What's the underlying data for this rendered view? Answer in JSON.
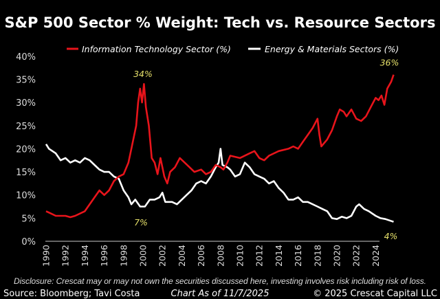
{
  "chart_data": {
    "type": "line",
    "title": "S&P 500 Sector % Weight: Tech vs. Resource Sectors",
    "xlabel": "",
    "ylabel": "",
    "xlim": [
      1990,
      2025.9
    ],
    "ylim": [
      0,
      40
    ],
    "y_ticks": [
      "0%",
      "5%",
      "10%",
      "15%",
      "20%",
      "25%",
      "30%",
      "35%",
      "40%"
    ],
    "y_tick_values": [
      0,
      5,
      10,
      15,
      20,
      25,
      30,
      35,
      40
    ],
    "x_ticks": [
      "1990",
      "1992",
      "1994",
      "1996",
      "1998",
      "2000",
      "2002",
      "2004",
      "2006",
      "2008",
      "2010",
      "2012",
      "2014",
      "2016",
      "2018",
      "2020",
      "2022",
      "2024"
    ],
    "grid": false,
    "legend_position": "top",
    "background": "#000000",
    "series": [
      {
        "name": "Information Technology Sector (%)",
        "color": "#e8141b",
        "x": [
          1990,
          1990.5,
          1991,
          1992,
          1992.5,
          1993,
          1994,
          1994.5,
          1995,
          1995.5,
          1996,
          1996.5,
          1997,
          1997.5,
          1998,
          1998.5,
          1998.8,
          1999,
          1999.3,
          1999.5,
          1999.7,
          1999.9,
          2000.1,
          2000.3,
          2000.6,
          2000.9,
          2001.2,
          2001.5,
          2001.8,
          2002.2,
          2002.5,
          2002.8,
          2003.3,
          2003.8,
          2004.3,
          2004.8,
          2005.3,
          2006,
          2006.5,
          2007,
          2007.5,
          2008,
          2008.3,
          2008.7,
          2009,
          2010,
          2011,
          2011.5,
          2012,
          2012.5,
          2013,
          2014,
          2015,
          2015.5,
          2016,
          2016.5,
          2017,
          2017.5,
          2018,
          2018.2,
          2018.4,
          2019,
          2019.5,
          2020,
          2020.3,
          2020.7,
          2021,
          2021.5,
          2022,
          2022.5,
          2023,
          2023.5,
          2024,
          2024.3,
          2024.6,
          2024.9,
          2025.2,
          2025.6,
          2025.85
        ],
        "values": [
          6.5,
          6,
          5.5,
          5.5,
          5.2,
          5.5,
          6.5,
          8,
          9.5,
          11,
          10,
          11,
          13,
          14,
          14.5,
          17,
          20,
          22,
          25,
          30,
          33,
          30,
          34,
          29,
          25,
          18,
          17,
          14.5,
          18,
          14,
          12.5,
          15,
          16,
          18,
          17,
          16,
          15,
          15.5,
          14.5,
          15,
          16.5,
          16,
          15.5,
          17,
          18.5,
          18,
          19,
          19.5,
          18,
          17.5,
          18.5,
          19.5,
          20,
          20.5,
          20,
          21.5,
          23,
          24.5,
          26.5,
          23,
          20.5,
          22,
          24,
          27,
          28.5,
          28,
          27,
          28.5,
          26.5,
          26,
          27,
          29,
          31,
          30.5,
          31.5,
          29.5,
          33,
          34.5,
          36
        ]
      },
      {
        "name": "Energy & Materials Sectors (%)",
        "color": "#ffffff",
        "x": [
          1990,
          1990.3,
          1991,
          1991.5,
          1992,
          1992.5,
          1993,
          1993.5,
          1994,
          1994.5,
          1995,
          1995.5,
          1996,
          1996.5,
          1997,
          1997.5,
          1998,
          1998.5,
          1998.8,
          1999.2,
          1999.7,
          2000.2,
          2000.7,
          2001.2,
          2001.7,
          2002,
          2002.3,
          2003,
          2003.5,
          2004,
          2004.5,
          2005,
          2005.5,
          2006,
          2006.5,
          2007,
          2007.5,
          2007.8,
          2008,
          2008.2,
          2008.7,
          2009,
          2009.5,
          2010,
          2010.5,
          2011,
          2011.5,
          2012,
          2012.5,
          2013,
          2013.5,
          2014,
          2014.5,
          2015,
          2015.5,
          2016,
          2016.5,
          2017,
          2018,
          2018.5,
          2019,
          2019.5,
          2020,
          2020.5,
          2021,
          2021.5,
          2022,
          2022.3,
          2022.8,
          2023.3,
          2024,
          2024.5,
          2025,
          2025.85
        ],
        "values": [
          21,
          20,
          19,
          17.5,
          18,
          17,
          17.5,
          17,
          18,
          17.5,
          16.5,
          15.5,
          15,
          15,
          14,
          13.5,
          11,
          9.5,
          8,
          9,
          7.5,
          7.5,
          9,
          9,
          9.5,
          10.5,
          8.5,
          8.5,
          8,
          9,
          10,
          11,
          12.5,
          13,
          12.5,
          14,
          16,
          17,
          20,
          16.5,
          16,
          15.5,
          14,
          14.5,
          17,
          16,
          14.5,
          14,
          13.5,
          12.5,
          13,
          11.5,
          10.5,
          9,
          9,
          9.5,
          8.5,
          8.5,
          7.5,
          7,
          6.5,
          5,
          4.8,
          5.3,
          5,
          5.5,
          7.5,
          8,
          7,
          6.5,
          5.5,
          5,
          4.8,
          4.2
        ]
      }
    ],
    "annotations": [
      {
        "text": "34%",
        "x": 2000,
        "y": 34
      },
      {
        "text": "7%",
        "x": 2000,
        "y": 7
      },
      {
        "text": "36%",
        "x": 2025.85,
        "y": 36
      },
      {
        "text": "4%",
        "x": 2025.85,
        "y": 4
      }
    ]
  },
  "footer": {
    "disclosure": "Disclosure: Crescat may or may not own the securities discussed here, investing involves risk including risk of loss.",
    "source": "Source: Bloomberg; Tavi Costa",
    "chart_as_of": "Chart As of 11/7/2025",
    "copyright": "© 2025 Crescat Capital LLC"
  }
}
